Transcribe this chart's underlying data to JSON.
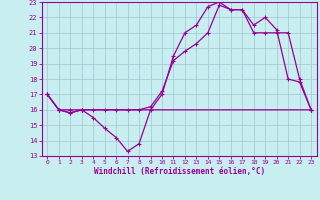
{
  "bg_color": "#c8eef0",
  "grid_color": "#a8ccd8",
  "line_color": "#990099",
  "xlim": [
    -0.5,
    23.5
  ],
  "ylim": [
    13,
    23
  ],
  "xticks": [
    0,
    1,
    2,
    3,
    4,
    5,
    6,
    7,
    8,
    9,
    10,
    11,
    12,
    13,
    14,
    15,
    16,
    17,
    18,
    19,
    20,
    21,
    22,
    23
  ],
  "yticks": [
    13,
    14,
    15,
    16,
    17,
    18,
    19,
    20,
    21,
    22,
    23
  ],
  "xlabel": "Windchill (Refroidissement éolien,°C)",
  "curve1_x": [
    0,
    1,
    2,
    3,
    4,
    5,
    6,
    7,
    8,
    9,
    10,
    11,
    12,
    13,
    14,
    15,
    16,
    17,
    18,
    19,
    20,
    21,
    22,
    23
  ],
  "curve1_y": [
    17,
    16,
    15.8,
    16,
    15.5,
    14.8,
    14.2,
    13.3,
    13.8,
    16,
    17,
    19.5,
    21,
    21.5,
    22.7,
    23.0,
    22.5,
    22.5,
    21.5,
    22.0,
    21.2,
    18.0,
    17.8,
    16.0
  ],
  "curve2_x": [
    0,
    1,
    2,
    3,
    4,
    5,
    6,
    7,
    8,
    9,
    10,
    11,
    12,
    13,
    14,
    15,
    16,
    17,
    18,
    19,
    20,
    21,
    22,
    23
  ],
  "curve2_y": [
    17,
    16,
    15.8,
    16,
    16,
    16,
    16,
    16,
    16,
    16.2,
    17.2,
    19.2,
    19.8,
    20.3,
    21.0,
    22.8,
    22.5,
    22.5,
    21.0,
    21.0,
    21.0,
    21.0,
    18.0,
    16.0
  ],
  "curve3_x": [
    0,
    1,
    2,
    3,
    23
  ],
  "curve3_y": [
    17,
    16,
    16,
    16,
    16
  ],
  "marker": "+"
}
